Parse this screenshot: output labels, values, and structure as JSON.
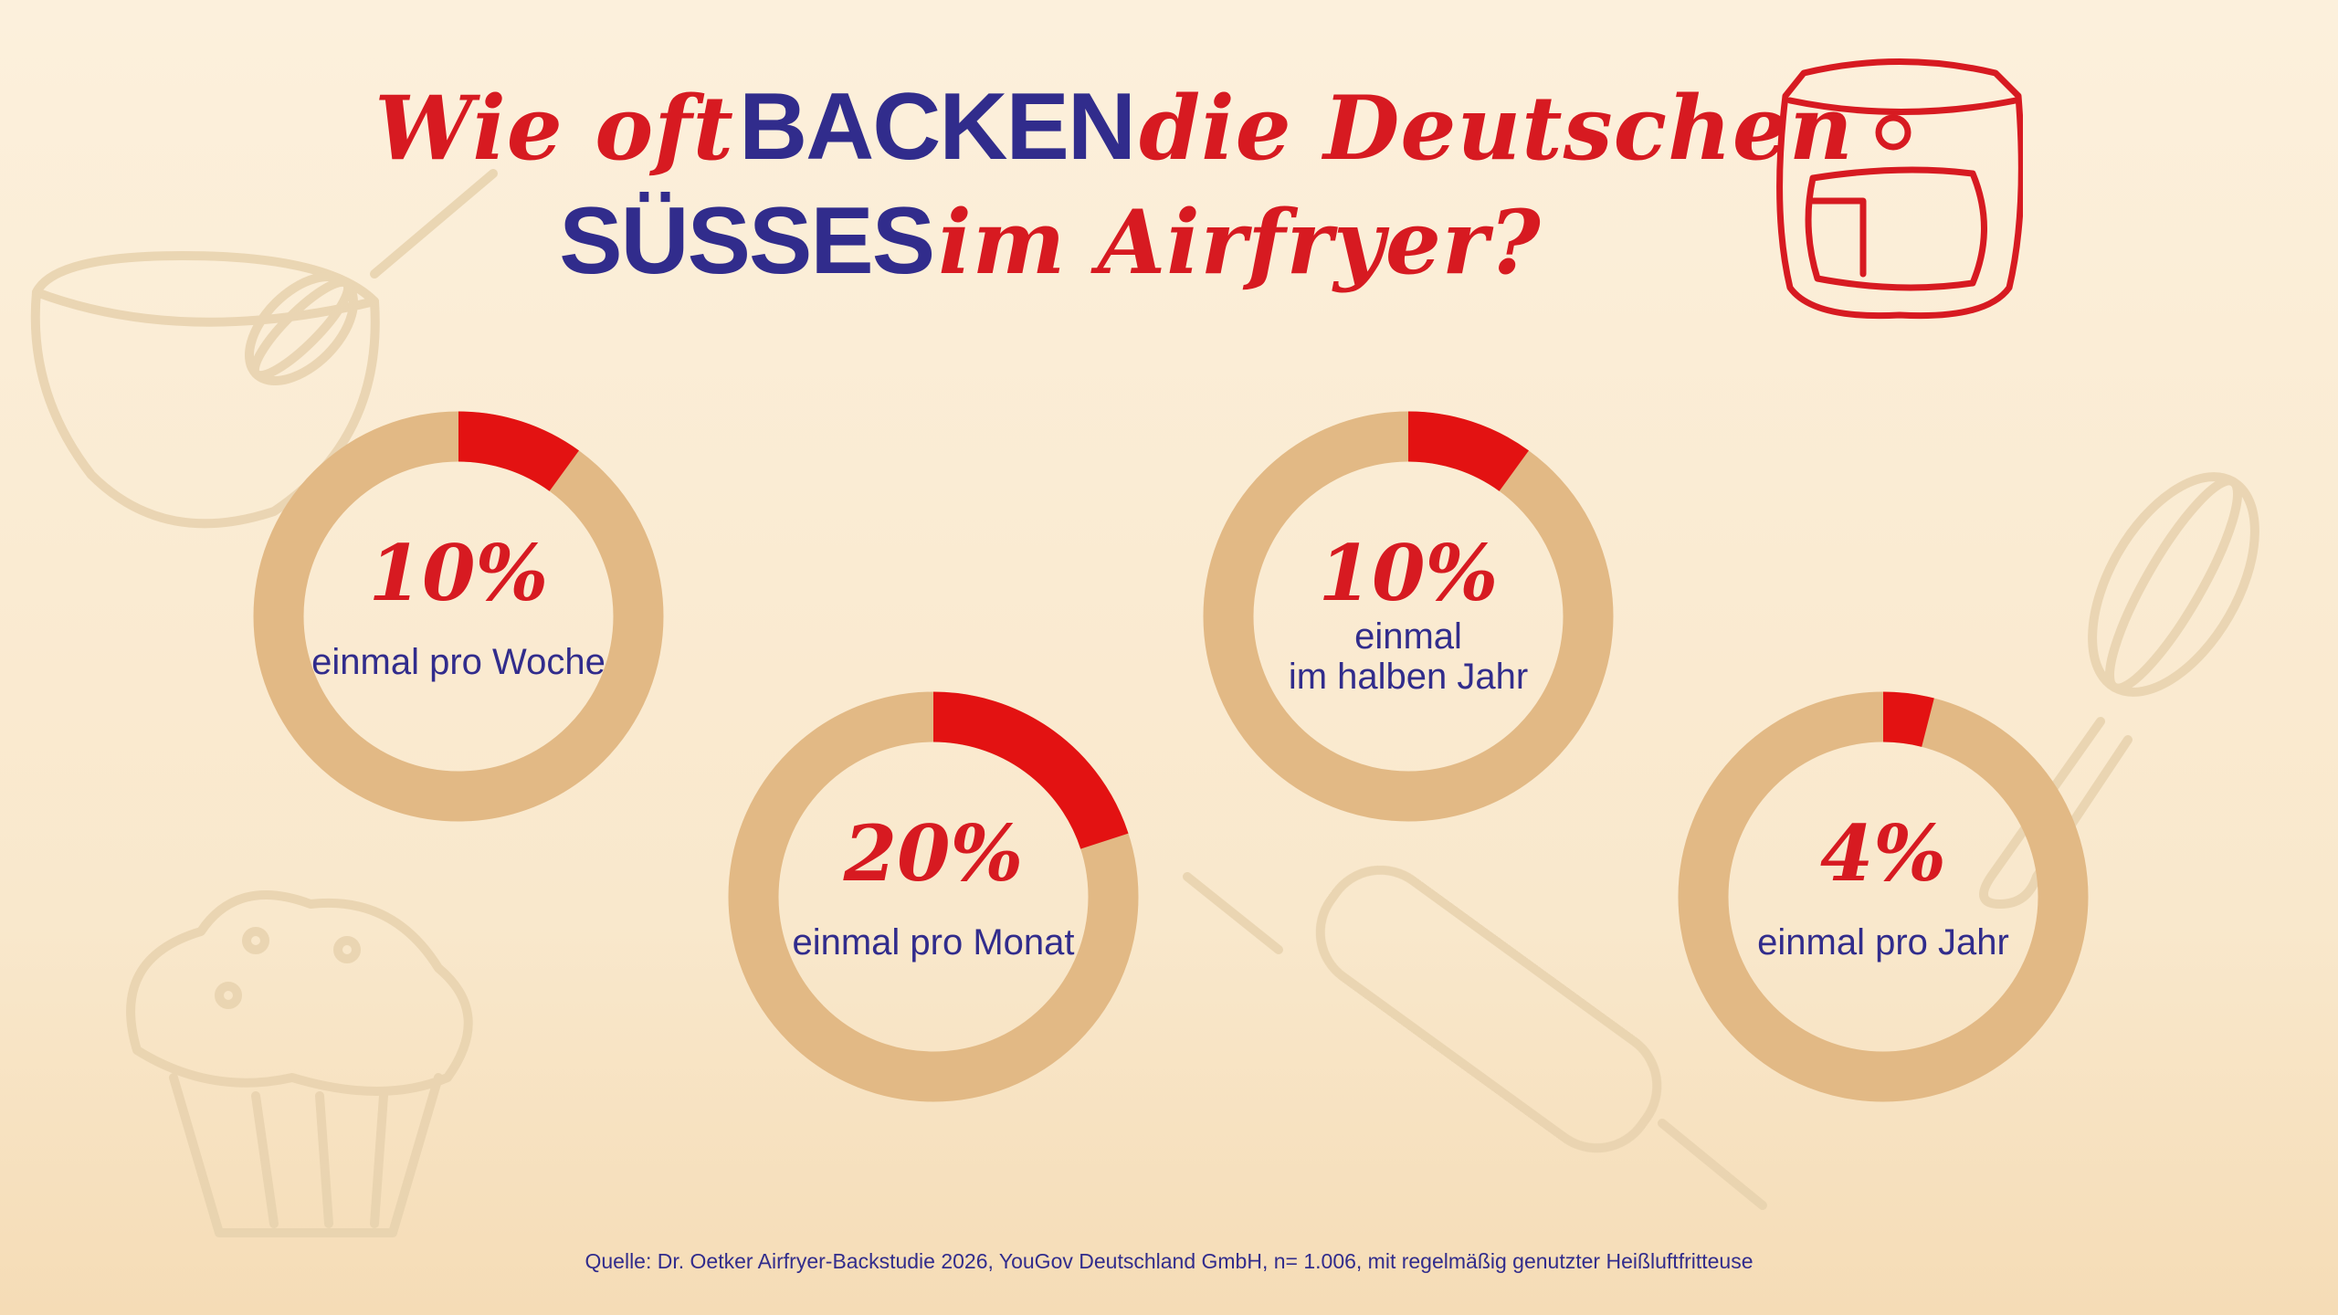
{
  "title": {
    "part1": "Wie oft",
    "part2": "BACKEN",
    "part3": "die Deutschen",
    "part4": "SÜSSES",
    "part5": "im Airfryer?"
  },
  "chart_data": {
    "type": "pie",
    "title": "Wie oft BACKEN die Deutschen SÜSSES im Airfryer?",
    "categories": [
      "einmal pro Woche",
      "einmal pro Monat",
      "einmal im halben Jahr",
      "einmal pro Jahr"
    ],
    "values": [
      10,
      20,
      10,
      4
    ],
    "unit": "%",
    "items": [
      {
        "label": "10%",
        "value": 10,
        "caption": [
          "einmal pro Woche"
        ]
      },
      {
        "label": "20%",
        "value": 20,
        "caption": [
          "einmal pro Monat"
        ]
      },
      {
        "label": "10%",
        "value": 10,
        "caption": [
          "einmal",
          "im halben Jahr"
        ]
      },
      {
        "label": "4%",
        "value": 4,
        "caption": [
          "einmal pro Jahr"
        ]
      }
    ],
    "colors": {
      "highlight": "#e31212",
      "ring": "#e2b985",
      "percent_text": "#d71a21",
      "caption_text": "#312c8c"
    }
  },
  "source": "Quelle: Dr. Oetker Airfryer-Backstudie 2026, YouGov Deutschland GmbH, n= 1.006, mit regelmäßig genutzter Heißluftfritteuse",
  "icons": [
    "airfryer-icon",
    "bowl-whisk-icon",
    "muffin-icon",
    "rolling-pin-icon",
    "whisk-icon"
  ]
}
